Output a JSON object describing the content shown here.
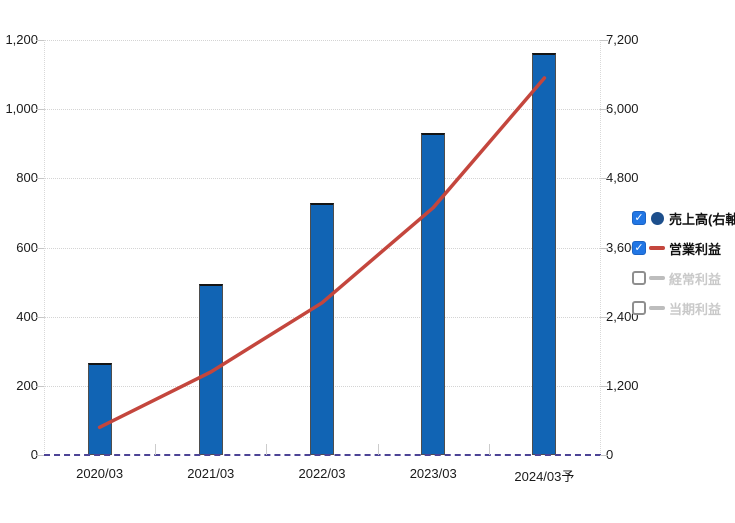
{
  "chart_data": {
    "type": "combo-bar-line",
    "categories": [
      "2020/03",
      "2021/03",
      "2022/03",
      "2023/03",
      "2024/03予"
    ],
    "series": [
      {
        "name": "売上高(右軸)",
        "type": "bar",
        "axis": "right",
        "color": "#1164b4",
        "values": [
          1600,
          2970,
          4380,
          5580,
          6980
        ],
        "enabled": true
      },
      {
        "name": "営業利益",
        "type": "line",
        "axis": "left",
        "color": "#c4463d",
        "values": [
          80,
          240,
          440,
          715,
          1090
        ],
        "enabled": true
      },
      {
        "name": "経常利益",
        "type": "line",
        "axis": "left",
        "color": "#bdbdbd",
        "values": [],
        "enabled": false
      },
      {
        "name": "当期利益",
        "type": "line",
        "axis": "left",
        "color": "#bdbdbd",
        "values": [],
        "enabled": false
      }
    ],
    "left_axis": {
      "min": 0,
      "max": 1200,
      "step": 200,
      "ticks": [
        "0",
        "200",
        "400",
        "600",
        "800",
        "1,000",
        "1,200"
      ]
    },
    "right_axis": {
      "min": 0,
      "max": 7200,
      "step": 1200,
      "ticks": [
        "0",
        "1,200",
        "2,400",
        "3,600",
        "4,800",
        "6,000",
        "7,200"
      ]
    },
    "grid": true,
    "legend_position": "right",
    "title": "",
    "xlabel": "",
    "ylabel": ""
  },
  "legend": {
    "items": [
      {
        "label": "売上高(右軸)",
        "checked": true,
        "marker": "circle",
        "marker_color": "#1d4f8c",
        "enabled": true
      },
      {
        "label": "営業利益",
        "checked": true,
        "marker": "dash",
        "marker_color": "#c4463d",
        "enabled": true
      },
      {
        "label": "経常利益",
        "checked": false,
        "marker": "dash",
        "marker_color": "#bdbdbd",
        "enabled": false
      },
      {
        "label": "当期利益",
        "checked": false,
        "marker": "dash",
        "marker_color": "#bdbdbd",
        "enabled": false
      }
    ],
    "check_glyph": "✓"
  },
  "colors": {
    "bar_fill": "#1164b4",
    "bar_border": "#4e4e4e",
    "bar_top": "#141414",
    "line": "#c4463d",
    "grid": "#d4d4d4",
    "zero_line": "#4d4496",
    "axis_text": "#1a1a1a",
    "disabled_text": "#c9c9c9",
    "checkbox_checked": "#2176e4"
  }
}
